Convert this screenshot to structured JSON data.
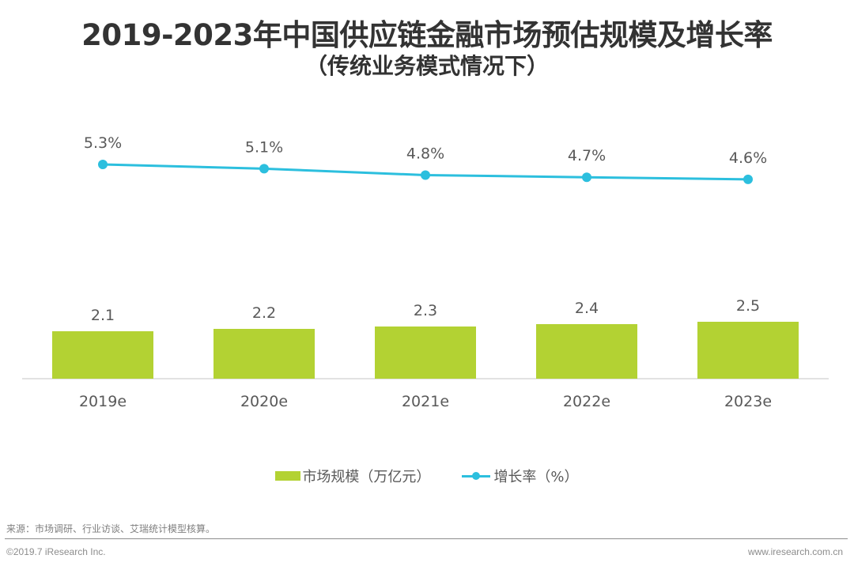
{
  "chart_data": {
    "type": "bar+line",
    "title": "2019-2023年中国供应链金融市场预估规模及增长率",
    "subtitle": "（传统业务模式情况下）",
    "categories": [
      "2019e",
      "2020e",
      "2021e",
      "2022e",
      "2023e"
    ],
    "series": [
      {
        "name": "市场规模（万亿元）",
        "type": "bar",
        "values": [
          2.1,
          2.2,
          2.3,
          2.4,
          2.5
        ],
        "labels": [
          "2.1",
          "2.2",
          "2.3",
          "2.4",
          "2.5"
        ],
        "color": "#b3d233"
      },
      {
        "name": "增长率（%）",
        "type": "line",
        "values": [
          5.3,
          5.1,
          4.8,
          4.7,
          4.6
        ],
        "labels": [
          "5.3%",
          "5.1%",
          "4.8%",
          "4.7%",
          "4.6%"
        ],
        "color": "#2cbfde"
      }
    ],
    "legend_position": "bottom",
    "grid": false
  },
  "footer": {
    "source": "来源：市场调研、行业访谈、艾瑞统计模型核算。",
    "copyright": "©2019.7 iResearch Inc.",
    "website": "www.iresearch.com.cn"
  }
}
